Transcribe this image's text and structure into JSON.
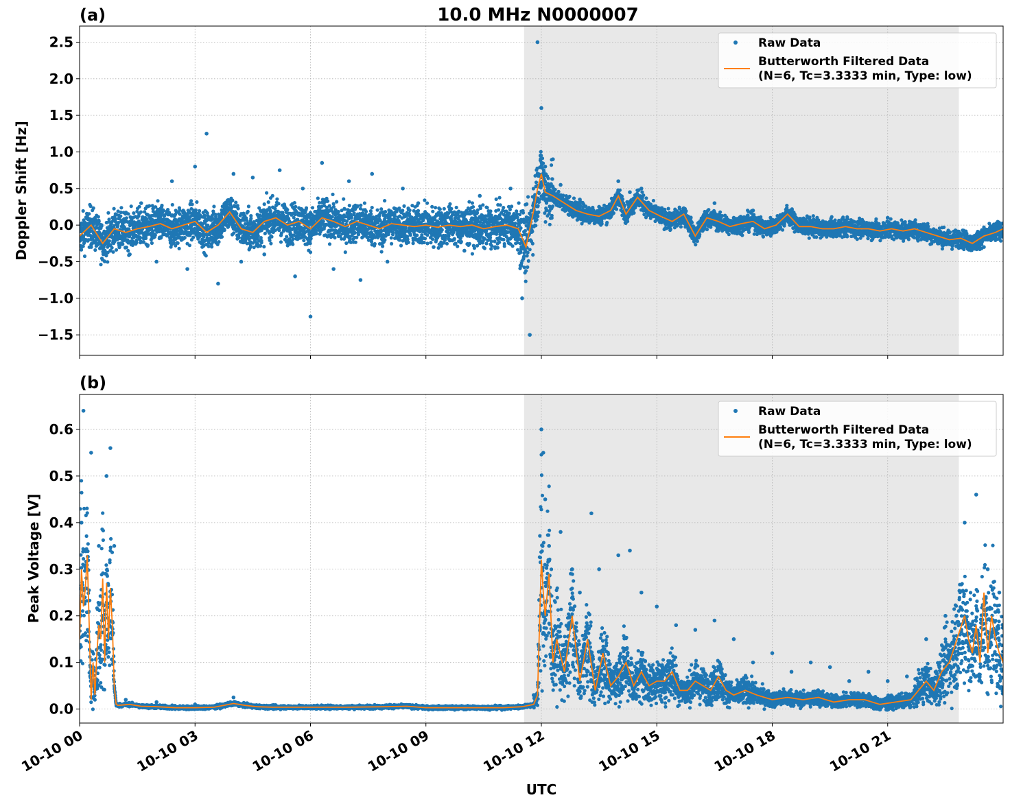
{
  "chart_data": [
    {
      "panel_label": "(a)",
      "type": "scatter",
      "title": "10.0 MHz N0000007",
      "ylabel": "Doppler Shift [Hz]",
      "xlabel": "",
      "x_unit": "hours UTC on 10-10",
      "xlim": [
        0,
        24
      ],
      "ylim": [
        -1.78,
        2.72
      ],
      "yticks": [
        -1.5,
        -1.0,
        -0.5,
        0.0,
        0.5,
        1.0,
        1.5,
        2.0,
        2.5
      ],
      "ytick_labels": [
        "−1.5",
        "−1.0",
        "−0.5",
        "0.0",
        "0.5",
        "1.0",
        "1.5",
        "2.0",
        "2.5"
      ],
      "shaded_region": {
        "x": [
          11.55,
          22.85
        ],
        "color": "#e8e8e8"
      },
      "grid": true,
      "legend_position": "top-right",
      "series": [
        {
          "name": "Raw Data",
          "kind": "scatter",
          "color": "#1f77b4",
          "x": [
            0.1,
            0.3,
            0.5,
            0.8,
            1.0,
            1.3,
            1.6,
            2.0,
            2.4,
            2.8,
            3.0,
            3.3,
            3.6,
            4.0,
            4.2,
            4.5,
            4.8,
            5.2,
            5.6,
            5.8,
            6.0,
            6.3,
            6.6,
            7.0,
            7.3,
            7.6,
            8.0,
            8.4,
            8.8,
            9.2,
            9.6,
            10.0,
            10.4,
            10.8,
            11.2,
            11.5,
            11.7,
            11.8,
            11.9,
            12.0,
            12.1,
            12.3,
            12.5,
            13.0,
            13.5,
            14.0,
            14.3,
            14.6,
            15.0,
            15.5,
            16.0,
            16.5,
            17.0,
            17.5,
            18.0,
            18.5,
            19.0,
            19.5,
            20.0,
            20.5,
            21.0,
            21.5,
            22.0,
            22.5,
            23.0,
            23.5,
            23.9
          ],
          "y": [
            -0.2,
            -0.3,
            0.05,
            -0.35,
            -0.1,
            -0.4,
            0.3,
            -0.5,
            0.6,
            -0.6,
            0.8,
            1.25,
            -0.8,
            0.7,
            -0.5,
            0.65,
            -0.4,
            0.75,
            -0.7,
            0.5,
            -1.25,
            0.85,
            -0.6,
            0.6,
            -0.75,
            0.7,
            -0.5,
            0.5,
            0.3,
            -0.3,
            0.25,
            -0.35,
            0.4,
            -0.3,
            0.5,
            -1.0,
            -1.5,
            0.3,
            2.5,
            1.6,
            0.8,
            0.9,
            0.55,
            0.35,
            0.25,
            0.6,
            0.45,
            0.5,
            0.2,
            0.05,
            -0.1,
            0.3,
            0.1,
            0.2,
            0.0,
            0.15,
            -0.1,
            0.05,
            -0.05,
            0.0,
            0.1,
            -0.1,
            -0.15,
            -0.2,
            -0.25,
            -0.3,
            -0.1
          ]
        },
        {
          "name": "Butterworth Filtered Data",
          "name_line2": "(N=6, Tc=3.3333 min, Type: low)",
          "kind": "line",
          "color": "#ff7f0e",
          "x": [
            0.0,
            0.3,
            0.6,
            0.9,
            1.2,
            1.5,
            1.8,
            2.1,
            2.4,
            2.7,
            3.0,
            3.3,
            3.6,
            3.9,
            4.2,
            4.5,
            4.8,
            5.1,
            5.4,
            5.7,
            6.0,
            6.3,
            6.6,
            6.9,
            7.2,
            7.5,
            7.8,
            8.1,
            8.4,
            8.7,
            9.0,
            9.3,
            9.6,
            9.9,
            10.2,
            10.5,
            10.8,
            11.1,
            11.4,
            11.6,
            11.8,
            11.9,
            12.0,
            12.1,
            12.3,
            12.6,
            12.9,
            13.2,
            13.5,
            13.8,
            14.0,
            14.2,
            14.5,
            14.8,
            15.1,
            15.4,
            15.7,
            16.0,
            16.3,
            16.6,
            16.9,
            17.2,
            17.5,
            17.8,
            18.1,
            18.4,
            18.7,
            19.0,
            19.3,
            19.6,
            19.9,
            20.2,
            20.5,
            20.8,
            21.1,
            21.4,
            21.7,
            22.0,
            22.3,
            22.6,
            22.9,
            23.2,
            23.5,
            23.8,
            24.0
          ],
          "y": [
            -0.15,
            0.0,
            -0.25,
            -0.05,
            -0.1,
            -0.05,
            -0.02,
            0.02,
            -0.05,
            0.0,
            0.05,
            -0.1,
            0.0,
            0.18,
            -0.05,
            -0.1,
            0.05,
            0.1,
            0.0,
            0.05,
            -0.05,
            0.1,
            0.05,
            -0.02,
            0.05,
            0.0,
            -0.05,
            0.02,
            0.0,
            -0.02,
            0.0,
            -0.03,
            0.0,
            -0.02,
            0.0,
            -0.05,
            -0.02,
            0.0,
            -0.05,
            -0.3,
            0.2,
            0.5,
            0.7,
            0.45,
            0.4,
            0.3,
            0.2,
            0.15,
            0.12,
            0.2,
            0.4,
            0.15,
            0.38,
            0.2,
            0.12,
            0.05,
            0.15,
            -0.15,
            0.1,
            0.05,
            -0.02,
            0.02,
            0.05,
            -0.05,
            0.0,
            0.15,
            -0.02,
            -0.02,
            -0.05,
            -0.05,
            -0.02,
            -0.05,
            -0.05,
            -0.08,
            -0.05,
            -0.08,
            -0.05,
            -0.1,
            -0.15,
            -0.2,
            -0.18,
            -0.25,
            -0.15,
            -0.1,
            -0.05
          ]
        }
      ]
    },
    {
      "panel_label": "(b)",
      "type": "scatter",
      "title": "",
      "ylabel": "Peak Voltage [V]",
      "xlabel": "UTC",
      "x_unit": "hours UTC on 10-10",
      "xlim": [
        0,
        24
      ],
      "ylim": [
        -0.03,
        0.675
      ],
      "yticks": [
        0.0,
        0.1,
        0.2,
        0.3,
        0.4,
        0.5,
        0.6
      ],
      "ytick_labels": [
        "0.0",
        "0.1",
        "0.2",
        "0.3",
        "0.4",
        "0.5",
        "0.6"
      ],
      "xticks": [
        0,
        3,
        6,
        9,
        12,
        15,
        18,
        21
      ],
      "xtick_labels": [
        "10-10 00",
        "10-10 03",
        "10-10 06",
        "10-10 09",
        "10-10 12",
        "10-10 15",
        "10-10 18",
        "10-10 21"
      ],
      "shaded_region": {
        "x": [
          11.55,
          22.85
        ],
        "color": "#e8e8e8"
      },
      "grid": true,
      "legend_position": "top-right",
      "series": [
        {
          "name": "Raw Data",
          "kind": "scatter",
          "color": "#1f77b4",
          "x": [
            0.05,
            0.1,
            0.2,
            0.3,
            0.5,
            0.7,
            0.8,
            0.9,
            1.2,
            2.0,
            3.0,
            4.0,
            5.0,
            6.0,
            7.0,
            8.0,
            9.0,
            10.0,
            11.0,
            11.8,
            12.0,
            12.05,
            12.1,
            12.2,
            12.5,
            12.8,
            13.0,
            13.3,
            13.5,
            14.0,
            14.3,
            14.6,
            15.0,
            15.5,
            16.0,
            16.5,
            17.0,
            17.5,
            18.0,
            18.5,
            19.0,
            19.5,
            20.0,
            20.5,
            21.0,
            21.5,
            22.0,
            22.5,
            23.0,
            23.3,
            23.6,
            23.9
          ],
          "y": [
            0.4,
            0.64,
            0.3,
            0.55,
            0.35,
            0.5,
            0.56,
            0.35,
            0.02,
            0.015,
            0.01,
            0.025,
            0.008,
            0.006,
            0.006,
            0.008,
            0.005,
            0.005,
            0.005,
            0.03,
            0.6,
            0.55,
            0.45,
            0.35,
            0.38,
            0.3,
            0.25,
            0.42,
            0.3,
            0.33,
            0.34,
            0.25,
            0.22,
            0.18,
            0.17,
            0.19,
            0.15,
            0.1,
            0.12,
            0.08,
            0.1,
            0.09,
            0.06,
            0.08,
            0.06,
            0.07,
            0.15,
            0.2,
            0.4,
            0.46,
            0.3,
            0.25
          ]
        },
        {
          "name": "Butterworth Filtered Data",
          "name_line2": "(N=6, Tc=3.3333 min, Type: low)",
          "kind": "line",
          "color": "#ff7f0e",
          "x": [
            0.0,
            0.05,
            0.1,
            0.15,
            0.2,
            0.25,
            0.3,
            0.35,
            0.4,
            0.45,
            0.5,
            0.55,
            0.6,
            0.65,
            0.7,
            0.75,
            0.8,
            0.85,
            0.9,
            0.95,
            1.0,
            1.3,
            1.6,
            2.0,
            2.5,
            3.0,
            3.5,
            4.0,
            4.3,
            4.6,
            5.0,
            6.0,
            7.0,
            8.0,
            8.5,
            9.0,
            10.0,
            11.0,
            11.5,
            11.8,
            11.9,
            12.0,
            12.05,
            12.1,
            12.2,
            12.3,
            12.4,
            12.6,
            12.8,
            13.0,
            13.2,
            13.4,
            13.6,
            13.8,
            14.0,
            14.2,
            14.4,
            14.6,
            14.8,
            15.0,
            15.2,
            15.4,
            15.6,
            15.8,
            16.0,
            16.2,
            16.4,
            16.6,
            16.8,
            17.0,
            17.3,
            17.6,
            18.0,
            18.4,
            18.8,
            19.2,
            19.6,
            20.0,
            20.4,
            20.8,
            21.2,
            21.6,
            22.0,
            22.2,
            22.4,
            22.6,
            22.8,
            23.0,
            23.1,
            23.2,
            23.3,
            23.4,
            23.5,
            23.6,
            23.7,
            23.8,
            23.9,
            24.0
          ],
          "y": [
            0.15,
            0.3,
            0.22,
            0.26,
            0.33,
            0.18,
            0.02,
            0.1,
            0.03,
            0.12,
            0.18,
            0.15,
            0.28,
            0.1,
            0.27,
            0.15,
            0.26,
            0.18,
            0.05,
            0.01,
            0.008,
            0.01,
            0.006,
            0.005,
            0.003,
            0.003,
            0.004,
            0.012,
            0.008,
            0.005,
            0.004,
            0.004,
            0.004,
            0.005,
            0.006,
            0.003,
            0.003,
            0.003,
            0.005,
            0.01,
            0.03,
            0.32,
            0.25,
            0.2,
            0.29,
            0.1,
            0.15,
            0.08,
            0.2,
            0.06,
            0.15,
            0.04,
            0.12,
            0.05,
            0.07,
            0.1,
            0.05,
            0.08,
            0.05,
            0.06,
            0.06,
            0.08,
            0.04,
            0.04,
            0.06,
            0.05,
            0.04,
            0.07,
            0.04,
            0.03,
            0.04,
            0.03,
            0.02,
            0.025,
            0.02,
            0.025,
            0.015,
            0.02,
            0.02,
            0.01,
            0.015,
            0.02,
            0.06,
            0.04,
            0.08,
            0.1,
            0.15,
            0.2,
            0.15,
            0.12,
            0.18,
            0.1,
            0.25,
            0.12,
            0.2,
            0.15,
            0.12,
            0.1
          ]
        }
      ]
    }
  ]
}
